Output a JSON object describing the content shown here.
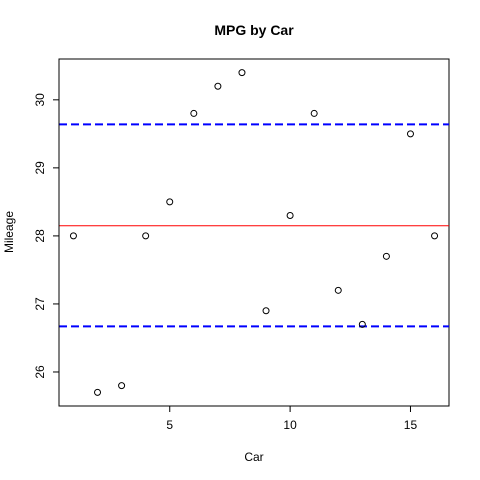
{
  "chart_data": {
    "type": "scatter",
    "title": "MPG by Car",
    "xlabel": "Car",
    "ylabel": "Mileage",
    "xlim": [
      0.4,
      16.6
    ],
    "ylim": [
      25.5,
      30.6
    ],
    "x_ticks": [
      5,
      10,
      15
    ],
    "y_ticks": [
      26,
      27,
      28,
      29,
      30
    ],
    "x": [
      1,
      2,
      3,
      4,
      5,
      6,
      7,
      8,
      9,
      10,
      11,
      12,
      13,
      14,
      15,
      16
    ],
    "y": [
      28.0,
      25.7,
      25.8,
      28.0,
      28.5,
      29.8,
      30.2,
      30.4,
      26.9,
      28.3,
      29.8,
      27.2,
      26.7,
      27.7,
      29.5,
      28.0
    ],
    "reference_lines": [
      {
        "type": "mean",
        "value": 28.15,
        "color": "#ff0000",
        "style": "solid"
      },
      {
        "type": "upper",
        "value": 29.64,
        "color": "#0000ff",
        "style": "dashed"
      },
      {
        "type": "lower",
        "value": 26.67,
        "color": "#0000ff",
        "style": "dashed"
      }
    ],
    "grid": false,
    "legend": "none"
  }
}
